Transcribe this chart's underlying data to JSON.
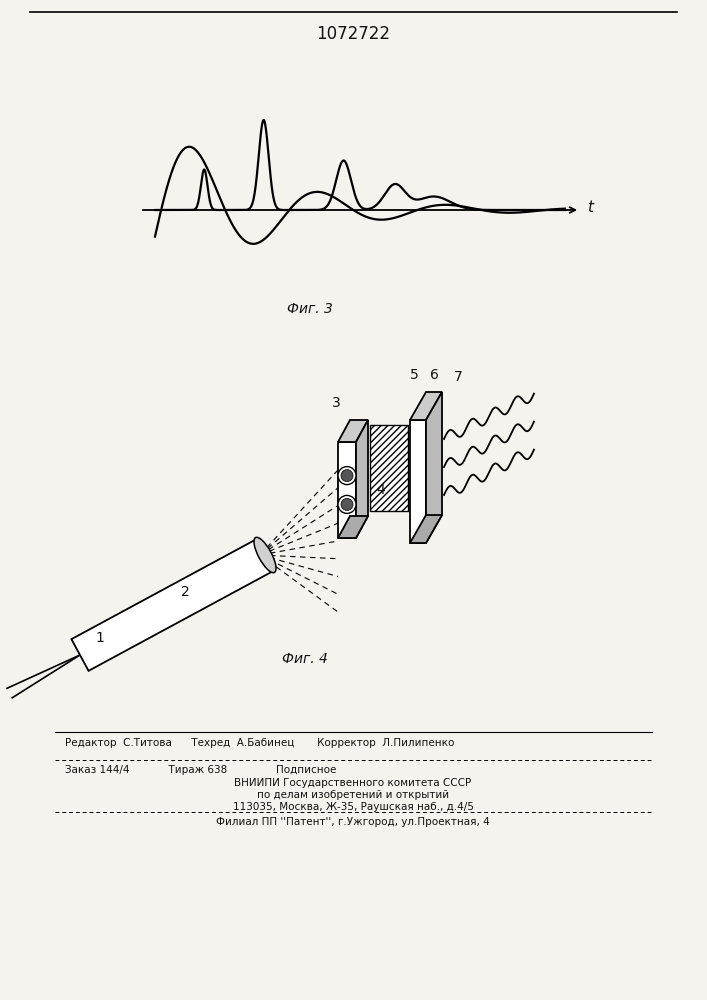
{
  "patent_number": "1072722",
  "fig3_label": "Фиг. 3",
  "fig4_label": "Фиг. 4",
  "footer_line1": "Редактор  С.Титова      Техред  А.Бабинец       Корректор  Л.Пилипенко",
  "footer_line2": "Заказ 144/4            Тираж 638               Подписное",
  "footer_line3": "ВНИИПИ Государственного комитета СССР",
  "footer_line4": "по делам изобретений и открытий",
  "footer_line5": "113035, Москва, Ж-35, Раушская наб., д.4/5",
  "footer_line6": "Филиал ППП ''\\u041fатент'', г.Ужгород, ул.Проектная, 4",
  "bg_color": "#f5f3ee",
  "text_color": "#111111"
}
